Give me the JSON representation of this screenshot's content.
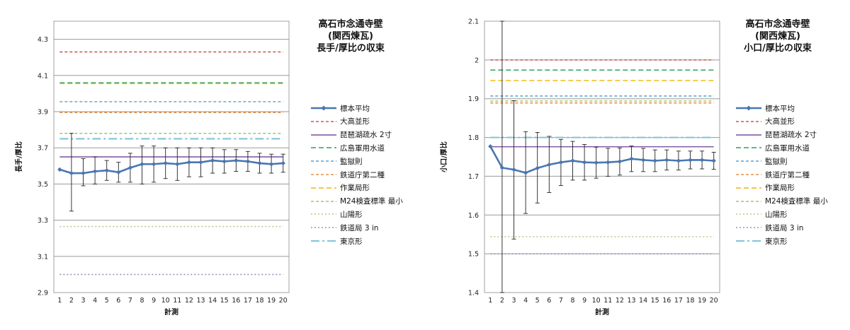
{
  "chart_data": [
    {
      "type": "line",
      "title": "高石市念通寺壁\n(関西煉瓦)\n長手/厚比の収束",
      "xlabel": "計測",
      "ylabel": "長手/厚比",
      "ylim": [
        2.9,
        4.4
      ],
      "y_ticks": [
        "2.9",
        "3.1",
        "3.3",
        "3.5",
        "3.7",
        "3.9",
        "4.1",
        "4.3"
      ],
      "x": [
        1,
        2,
        3,
        4,
        5,
        6,
        7,
        8,
        9,
        10,
        11,
        12,
        13,
        14,
        15,
        16,
        17,
        18,
        19,
        20
      ],
      "grid": true,
      "legend": "right",
      "series": [
        {
          "name": "標本平均",
          "kind": "mean",
          "color": "#4a76b0",
          "values": [
            3.58,
            3.56,
            3.56,
            3.57,
            3.575,
            3.565,
            3.59,
            3.61,
            3.61,
            3.615,
            3.61,
            3.62,
            3.62,
            3.63,
            3.625,
            3.63,
            3.625,
            3.615,
            3.61,
            3.615
          ],
          "err_high": [
            3.58,
            3.78,
            3.64,
            3.65,
            3.63,
            3.62,
            3.67,
            3.71,
            3.71,
            3.7,
            3.7,
            3.7,
            3.7,
            3.7,
            3.69,
            3.69,
            3.68,
            3.67,
            3.665,
            3.665
          ],
          "err_low": [
            3.58,
            3.35,
            3.49,
            3.5,
            3.52,
            3.51,
            3.51,
            3.5,
            3.51,
            3.53,
            3.52,
            3.54,
            3.54,
            3.56,
            3.56,
            3.57,
            3.57,
            3.56,
            3.56,
            3.565
          ]
        },
        {
          "name": "大高並形",
          "value": 4.23,
          "color": "#c0392b",
          "dash": "4,3",
          "width": 1.2
        },
        {
          "name": "琵琶湖疏水 2寸",
          "value": 3.65,
          "color": "#7b4f9d",
          "dash": "",
          "width": 1.4
        },
        {
          "name": "広島軍用水道",
          "value": 4.06,
          "color": "#2ca05a",
          "dash": "7,4",
          "width": 1.4
        },
        {
          "name": "監獄則",
          "value": 3.955,
          "color": "#3090c0",
          "dash": "4,3",
          "width": 1.2
        },
        {
          "name": "鉄道庁第二種",
          "value": 3.895,
          "color": "#e07b20",
          "dash": "4,3",
          "width": 1.2
        },
        {
          "name": "作業局形",
          "value": 4.055,
          "color": "#f0b800",
          "dash": "7,4",
          "width": 1.4
        },
        {
          "name": "M24検査標準 最小",
          "value": 3.78,
          "color": "#8fbc45",
          "dash": "4,3",
          "width": 1.2
        },
        {
          "name": "山陽形",
          "value": 3.265,
          "color": "#b9c98a",
          "dash": "2,3",
          "width": 1.6
        },
        {
          "name": "鉄道局 3 in",
          "value": 3.0,
          "color": "#9b8fc0",
          "dash": "2,3",
          "width": 1.6
        },
        {
          "name": "東京形",
          "value": 3.75,
          "color": "#87c6dc",
          "dash": "12,4,3,4",
          "width": 2.2
        }
      ]
    },
    {
      "type": "line",
      "title": "高石市念通寺壁\n(関西煉瓦)\n小口/厚比の収束",
      "xlabel": "計測",
      "ylabel": "小口/厚比",
      "ylim": [
        1.4,
        2.1
      ],
      "y_ticks": [
        "1.4",
        "1.5",
        "1.6",
        "1.7",
        "1.8",
        "1.9",
        "2",
        "2.1"
      ],
      "x": [
        1,
        2,
        3,
        4,
        5,
        6,
        7,
        8,
        9,
        10,
        11,
        12,
        13,
        14,
        15,
        16,
        17,
        18,
        19,
        20
      ],
      "grid": true,
      "legend": "right",
      "series": [
        {
          "name": "標本平均",
          "kind": "mean",
          "color": "#4a76b0",
          "values": [
            1.777,
            1.722,
            1.717,
            1.709,
            1.721,
            1.73,
            1.736,
            1.74,
            1.736,
            1.735,
            1.736,
            1.738,
            1.745,
            1.742,
            1.74,
            1.742,
            1.74,
            1.742,
            1.742,
            1.74
          ],
          "err_high": [
            1.777,
            2.1,
            1.895,
            1.815,
            1.813,
            1.803,
            1.795,
            1.79,
            1.782,
            1.775,
            1.772,
            1.773,
            1.778,
            1.772,
            1.768,
            1.768,
            1.765,
            1.765,
            1.765,
            1.762
          ],
          "err_low": [
            1.777,
            1.4,
            1.538,
            1.604,
            1.631,
            1.658,
            1.676,
            1.69,
            1.69,
            1.695,
            1.7,
            1.703,
            1.712,
            1.712,
            1.712,
            1.716,
            1.716,
            1.719,
            1.719,
            1.718
          ]
        },
        {
          "name": "大高並形",
          "value": 2.0,
          "color": "#c0392b",
          "dash": "4,3",
          "width": 1.2
        },
        {
          "name": "琵琶湖疏水 2寸",
          "value": 1.776,
          "color": "#7b4f9d",
          "dash": "",
          "width": 1.4
        },
        {
          "name": "広島軍用水道",
          "value": 1.974,
          "color": "#2ca05a",
          "dash": "7,4",
          "width": 1.4
        },
        {
          "name": "監獄則",
          "value": 1.907,
          "color": "#3090c0",
          "dash": "4,3",
          "width": 1.2
        },
        {
          "name": "鉄道庁第二種",
          "value": 1.889,
          "color": "#e07b20",
          "dash": "4,3",
          "width": 1.2
        },
        {
          "name": "作業局形",
          "value": 1.947,
          "color": "#f0b800",
          "dash": "7,4",
          "width": 1.4
        },
        {
          "name": "M24検査標準 最小",
          "value": 1.894,
          "color": "#8fbc45",
          "dash": "4,3",
          "width": 1.2
        },
        {
          "name": "山陽形",
          "value": 1.544,
          "color": "#b9c98a",
          "dash": "2,3",
          "width": 1.6
        },
        {
          "name": "鉄道局 3 in",
          "value": 1.5,
          "color": "#9b8fc0",
          "dash": "2,3",
          "width": 1.6
        },
        {
          "name": "東京形",
          "value": 1.8,
          "color": "#87c6dc",
          "dash": "12,4,3,4",
          "width": 2.2
        }
      ]
    }
  ]
}
